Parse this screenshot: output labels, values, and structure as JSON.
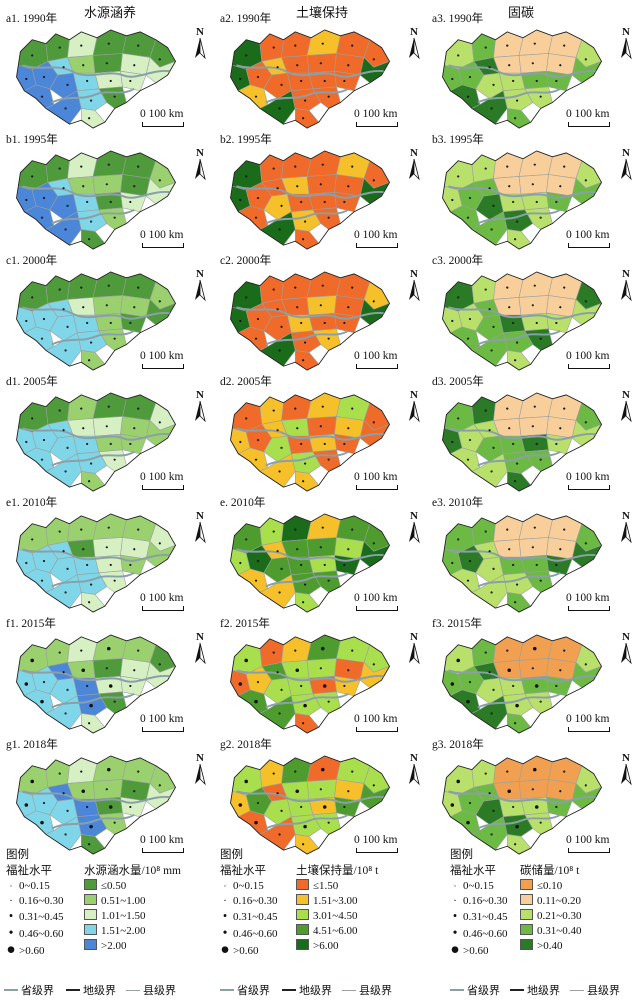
{
  "columns": [
    {
      "title": "水源涵养"
    },
    {
      "title": "土壤保持"
    },
    {
      "title": "固碳"
    }
  ],
  "panels": [
    [
      "a1. 1990年",
      "a2. 1990年",
      "a3. 1990年"
    ],
    [
      "b1. 1995年",
      "b2. 1995年",
      "b3. 1995年"
    ],
    [
      "c1. 2000年",
      "c2. 2000年",
      "c3. 2000年"
    ],
    [
      "d1. 2005年",
      "d2. 2005年",
      "d3. 2005年"
    ],
    [
      "e1. 2010年",
      "e. 2010年",
      "e3. 2010年"
    ],
    [
      "f1. 2015年",
      "f2. 2015年",
      "f3. 2015年"
    ],
    [
      "g1. 2018年",
      "g2. 2018年",
      "g3. 2018年"
    ]
  ],
  "north_label": "N",
  "scale_label": "0  100 km",
  "legend": {
    "title": "图例",
    "welfare_title": "福祉水平",
    "welfare_items": [
      "0~0.15",
      "0.16~0.30",
      "0.31~0.45",
      "0.46~0.60",
      ">0.60"
    ],
    "columns": [
      {
        "title": "水源涵水量/10⁸ mm",
        "items": [
          "≤0.50",
          "0.51~1.00",
          "1.01~1.50",
          "1.51~2.00",
          ">2.00"
        ],
        "colors": [
          "#4f9a3a",
          "#9bd06e",
          "#d6f0c4",
          "#7fd6e8",
          "#4b86d8"
        ]
      },
      {
        "title": "土壤保持量/10⁸ t",
        "items": [
          "≤1.50",
          "1.51~3.00",
          "3.01~4.50",
          "4.51~6.00",
          ">6.00"
        ],
        "colors": [
          "#f06a2a",
          "#f5c02a",
          "#a9df4d",
          "#4e9c2e",
          "#1a6b1a"
        ]
      },
      {
        "title": "碳储量/10⁸ t",
        "items": [
          "≤0.10",
          "0.11~0.20",
          "0.21~0.30",
          "0.31~0.40",
          ">0.40"
        ],
        "colors": [
          "#f0a050",
          "#f8cf9a",
          "#b8e06a",
          "#6cba44",
          "#2a7a26"
        ]
      }
    ]
  },
  "boundaries": {
    "province": "省级界",
    "prefecture": "地级界",
    "county": "县级界",
    "province_color": "#8aa0a8",
    "prefecture_color": "#222222",
    "county_color": "#9aa0a0"
  }
}
